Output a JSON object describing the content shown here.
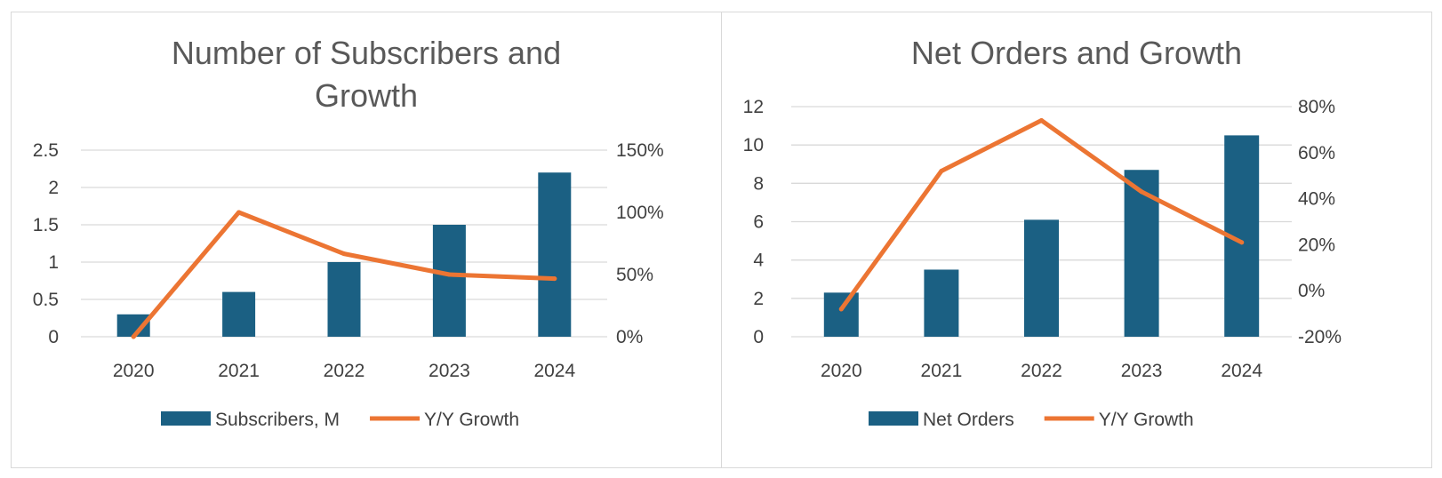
{
  "colors": {
    "bar": "#1b6083",
    "line": "#ec7533",
    "grid": "#d9d9d9",
    "text": "#404040",
    "title": "#595959"
  },
  "chart_data": [
    {
      "type": "bar",
      "title_lines": [
        "Number of Subscribers and",
        "Growth"
      ],
      "categories": [
        "2020",
        "2021",
        "2022",
        "2023",
        "2024"
      ],
      "series": [
        {
          "name": "Subscribers, M",
          "type": "bar",
          "axis": "left",
          "values": [
            0.3,
            0.6,
            1.0,
            1.5,
            2.2
          ]
        },
        {
          "name": "Y/Y Growth",
          "type": "line",
          "axis": "right",
          "values": [
            0,
            100,
            66.7,
            50,
            46.7
          ]
        }
      ],
      "left_axis": {
        "ylim": [
          0,
          2.5
        ],
        "ticks": [
          "0",
          "0.5",
          "1",
          "1.5",
          "2",
          "2.5"
        ]
      },
      "right_axis": {
        "ylim": [
          0,
          150
        ],
        "ticks": [
          "0%",
          "50%",
          "100%",
          "150%"
        ]
      },
      "grid": true,
      "legend": "bottom"
    },
    {
      "type": "bar",
      "title_lines": [
        "Net Orders and Growth"
      ],
      "categories": [
        "2020",
        "2021",
        "2022",
        "2023",
        "2024"
      ],
      "series": [
        {
          "name": "Net Orders",
          "type": "bar",
          "axis": "left",
          "values": [
            2.3,
            3.5,
            6.1,
            8.7,
            10.5
          ]
        },
        {
          "name": "Y/Y Growth",
          "type": "line",
          "axis": "right",
          "values": [
            -8,
            52,
            74,
            43,
            21
          ]
        }
      ],
      "left_axis": {
        "ylim": [
          0,
          12
        ],
        "ticks": [
          "0",
          "2",
          "4",
          "6",
          "8",
          "10",
          "12"
        ]
      },
      "right_axis": {
        "ylim": [
          -20,
          80
        ],
        "ticks": [
          "-20%",
          "0%",
          "20%",
          "40%",
          "60%",
          "80%"
        ]
      },
      "grid": true,
      "legend": "bottom"
    }
  ]
}
